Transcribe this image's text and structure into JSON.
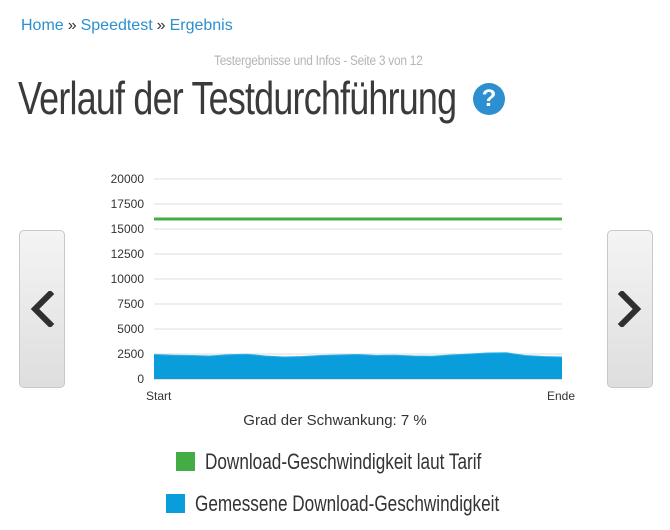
{
  "breadcrumb": {
    "items": [
      "Home",
      "Speedtest",
      "Ergebnis"
    ],
    "separator": "»"
  },
  "header": {
    "subheading": "Testergebnisse und Infos - Seite 3 von 12",
    "title": "Verlauf der Testdurchführung",
    "help_icon": "question-mark-icon"
  },
  "navigation": {
    "prev_icon": "chevron-left-icon",
    "next_icon": "chevron-right-icon"
  },
  "chart_data": {
    "type": "area",
    "x_tick_labels": [
      "Start",
      "Ende"
    ],
    "y_ticks": [
      0,
      2500,
      5000,
      7500,
      10000,
      12500,
      15000,
      17500,
      20000
    ],
    "y_tick_labels": [
      "0",
      "2500",
      "5000",
      "7500",
      "10000",
      "12500",
      "15000",
      "17500",
      "20000"
    ],
    "ylim": [
      0,
      20000
    ],
    "grid": true,
    "series": [
      {
        "name": "Download-Geschwindigkeit laut Tarif",
        "type": "line",
        "color": "#44ac44",
        "values": [
          16000,
          16000
        ]
      },
      {
        "name": "Gemessene Download-Geschwindigkeit",
        "type": "area",
        "color": "#0a9ddb",
        "values": [
          2450,
          2380,
          2350,
          2300,
          2420,
          2480,
          2300,
          2200,
          2250,
          2350,
          2400,
          2450,
          2350,
          2380,
          2300,
          2280,
          2400,
          2500,
          2600,
          2620,
          2350,
          2250,
          2200
        ]
      }
    ]
  },
  "variation": {
    "text": "Grad der Schwankung: 7 %"
  },
  "legend": [
    {
      "label": "Download-Geschwindigkeit laut Tarif",
      "color": "#44ac44"
    },
    {
      "label": "Gemessene Download-Geschwindigkeit",
      "color": "#0a9ddb"
    }
  ]
}
